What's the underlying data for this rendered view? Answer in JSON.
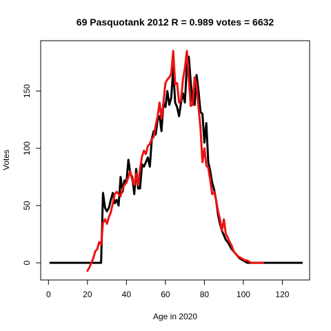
{
  "chart_data": {
    "type": "line",
    "title": "69 Pasquotank 2012 R = 0.989 votes = 6632",
    "xlabel": "Age in 2020",
    "ylabel": "Votes",
    "xlim": [
      -4,
      134
    ],
    "ylim": [
      -15,
      194
    ],
    "xticks": [
      "0",
      "20",
      "40",
      "60",
      "80",
      "100",
      "120"
    ],
    "yticks": [
      "0",
      "50",
      "100",
      "150"
    ],
    "grid": false,
    "series": [
      {
        "color": "#000000",
        "x": [
          1,
          2,
          3,
          4,
          5,
          6,
          7,
          8,
          9,
          10,
          11,
          12,
          13,
          14,
          15,
          16,
          17,
          18,
          19,
          20,
          21,
          22,
          23,
          24,
          25,
          26,
          27,
          28,
          29,
          30,
          31,
          32,
          33,
          34,
          35,
          36,
          37,
          38,
          39,
          40,
          41,
          42,
          43,
          44,
          45,
          46,
          47,
          48,
          49,
          50,
          51,
          52,
          53,
          54,
          55,
          56,
          57,
          58,
          59,
          60,
          61,
          62,
          63,
          64,
          65,
          66,
          67,
          68,
          69,
          70,
          71,
          72,
          73,
          74,
          75,
          76,
          77,
          78,
          79,
          80,
          81,
          82,
          83,
          84,
          85,
          86,
          87,
          88,
          89,
          90,
          91,
          92,
          93,
          94,
          95,
          96,
          97,
          98,
          99,
          100,
          101,
          102,
          103,
          104,
          105,
          106,
          107,
          108,
          109,
          110,
          111,
          112,
          113,
          114,
          115,
          116,
          117,
          118,
          119,
          120,
          121,
          122,
          123,
          124,
          125,
          126,
          127,
          128,
          129,
          130
        ],
        "y": [
          0,
          0,
          0,
          0,
          0,
          0,
          0,
          0,
          0,
          0,
          0,
          0,
          0,
          0,
          0,
          0,
          0,
          0,
          0,
          0,
          0,
          0,
          0,
          0,
          0,
          0,
          0,
          61,
          48,
          45,
          48,
          55,
          61,
          52,
          55,
          50,
          75,
          62,
          72,
          70,
          90,
          78,
          75,
          60,
          82,
          65,
          65,
          86,
          84,
          88,
          92,
          84,
          108,
          115,
          112,
          125,
          128,
          115,
          140,
          136,
          150,
          138,
          144,
          170,
          140,
          136,
          128,
          140,
          148,
          140,
          172,
          180,
          158,
          140,
          138,
          164,
          150,
          132,
          130,
          105,
          122,
          88,
          80,
          70,
          64,
          55,
          42,
          34,
          28,
          24,
          20,
          18,
          15,
          12,
          10,
          8,
          6,
          4,
          3,
          2,
          1,
          0,
          0,
          0,
          0,
          0,
          0,
          0,
          0,
          0,
          0,
          0,
          0,
          0,
          0,
          0,
          0,
          0,
          0,
          0,
          0,
          0,
          0,
          0,
          0,
          0,
          0,
          0,
          0,
          0
        ],
        "x_start_note": ""
      },
      {
        "color": "#ee1111",
        "x": [
          20,
          21,
          22,
          23,
          24,
          25,
          26,
          27,
          28,
          29,
          30,
          31,
          32,
          33,
          34,
          35,
          36,
          37,
          38,
          39,
          40,
          41,
          42,
          43,
          44,
          45,
          46,
          47,
          48,
          49,
          50,
          51,
          52,
          53,
          54,
          55,
          56,
          57,
          58,
          59,
          60,
          61,
          62,
          63,
          64,
          65,
          66,
          67,
          68,
          69,
          70,
          71,
          72,
          73,
          74,
          75,
          76,
          77,
          78,
          79,
          80,
          81,
          82,
          83,
          84,
          85,
          86,
          87,
          88,
          89,
          90,
          91,
          92,
          93,
          94,
          95,
          96,
          97,
          98,
          99,
          100,
          101,
          102,
          103,
          104,
          105,
          106,
          107,
          108,
          109,
          110
        ],
        "y": [
          -7,
          -4,
          0,
          4,
          10,
          12,
          18,
          16,
          35,
          38,
          34,
          40,
          44,
          52,
          60,
          62,
          60,
          58,
          65,
          68,
          70,
          75,
          80,
          72,
          68,
          78,
          68,
          82,
          93,
          98,
          95,
          102,
          104,
          108,
          110,
          120,
          128,
          140,
          126,
          140,
          157,
          160,
          162,
          165,
          185,
          156,
          157,
          140,
          142,
          160,
          170,
          185,
          160,
          137,
          138,
          162,
          155,
          136,
          118,
          88,
          100,
          85,
          83,
          72,
          60,
          62,
          55,
          45,
          38,
          28,
          38,
          25,
          22,
          18,
          15,
          10,
          8,
          6,
          5,
          4,
          3,
          2,
          2,
          1,
          0,
          0,
          0,
          0,
          0,
          0,
          0
        ]
      }
    ]
  }
}
